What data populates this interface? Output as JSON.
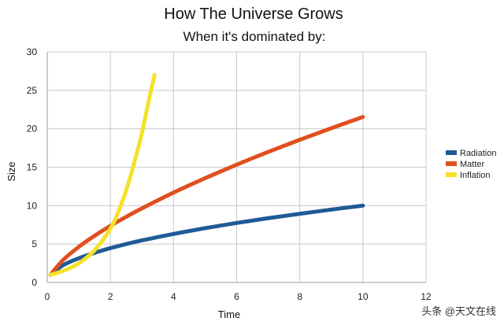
{
  "chart_data": {
    "type": "line",
    "title": "How The Universe Grows",
    "subtitle": "When it's dominated by:",
    "xlabel": "Time",
    "ylabel": "Size",
    "xlim": [
      0,
      12
    ],
    "ylim": [
      0,
      30
    ],
    "xticks": [
      0,
      2,
      4,
      6,
      8,
      10,
      12
    ],
    "yticks": [
      0,
      5,
      10,
      15,
      20,
      25,
      30
    ],
    "grid": true,
    "legend_position": "right",
    "series": [
      {
        "name": "Radiation",
        "color": "#1f5a96",
        "x": [
          0.1,
          0.5,
          1,
          1.5,
          2,
          2.5,
          3,
          4,
          5,
          6,
          7,
          8,
          9,
          10
        ],
        "y": [
          1.0,
          2.24,
          3.16,
          3.87,
          4.47,
          5.0,
          5.48,
          6.32,
          7.07,
          7.75,
          8.37,
          8.94,
          9.49,
          10.0
        ]
      },
      {
        "name": "Matter",
        "color": "#e0501e",
        "x": [
          0.1,
          0.5,
          1,
          1.5,
          2,
          2.5,
          3,
          4,
          5,
          6,
          7,
          8,
          9,
          10
        ],
        "y": [
          1.0,
          2.92,
          4.64,
          6.08,
          7.37,
          8.55,
          9.65,
          11.7,
          13.57,
          15.33,
          16.99,
          18.57,
          20.08,
          21.54
        ]
      },
      {
        "name": "Inflation",
        "color": "#f5e12a",
        "x": [
          0.1,
          0.5,
          1,
          1.5,
          2,
          2.25,
          2.5,
          2.75,
          3,
          3.25,
          3.4
        ],
        "y": [
          1.0,
          1.5,
          2.5,
          4.2,
          7.0,
          9.2,
          12.0,
          15.5,
          19.5,
          24.3,
          27.0
        ]
      }
    ]
  },
  "watermark": "头条 @天文在线"
}
